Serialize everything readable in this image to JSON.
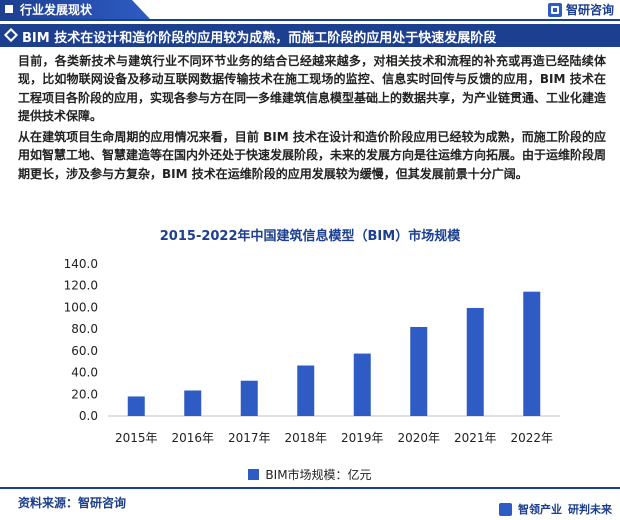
{
  "header": {
    "tag": "行业发展现状",
    "brand": "智研咨询"
  },
  "section": {
    "title": "BIM 技术在设计和造价阶段的应用较为成熟，而施工阶段的应用处于快速发展阶段"
  },
  "paragraphs": [
    "目前，各类新技术与建筑行业不同环节业务的结合已经越来越多，对相关技术和流程的补充或再造已经陆续体现，比如物联网设备及移动互联网数据传输技术在施工现场的监控、信息实时回传与反馈的应用，BIM 技术在工程项目各阶段的应用，实现各参与方在同一多维建筑信息模型基础上的数据共享，为产业链贯通、工业化建造提供技术保障。",
    "从在建筑项目生命周期的应用情况来看，目前 BIM 技术在设计和造价阶段应用已经较为成熟，而施工阶段的应用如智慧工地、智慧建造等在国内外还处于快速发展阶段，未来的发展方向是往运维方向拓展。由于运维阶段周期更长，涉及参与方复杂，BIM 技术在运维阶段的应用发展较为缓慢，但其发展前景十分广阔。"
  ],
  "chart_data": {
    "type": "bar",
    "title": "2015-2022年中国建筑信息模型（BIM）市场规模",
    "categories": [
      "2015年",
      "2016年",
      "2017年",
      "2018年",
      "2019年",
      "2020年",
      "2021年",
      "2022年"
    ],
    "series": [
      {
        "name": "BIM市场规模：亿元",
        "values": [
          18,
          23.5,
          32.5,
          46.5,
          57.5,
          82,
          99.5,
          114.5
        ],
        "color": "#2e5bc4"
      }
    ],
    "yticks": [
      "0.0",
      "20.0",
      "40.0",
      "60.0",
      "80.0",
      "100.0",
      "120.0",
      "140.0"
    ],
    "ylim": [
      0,
      140
    ],
    "grid": false,
    "legend": "bottom"
  },
  "footer": {
    "source": "资料来源：智研咨询",
    "slogan_1": "智领产业",
    "slogan_2": "研判未来"
  }
}
